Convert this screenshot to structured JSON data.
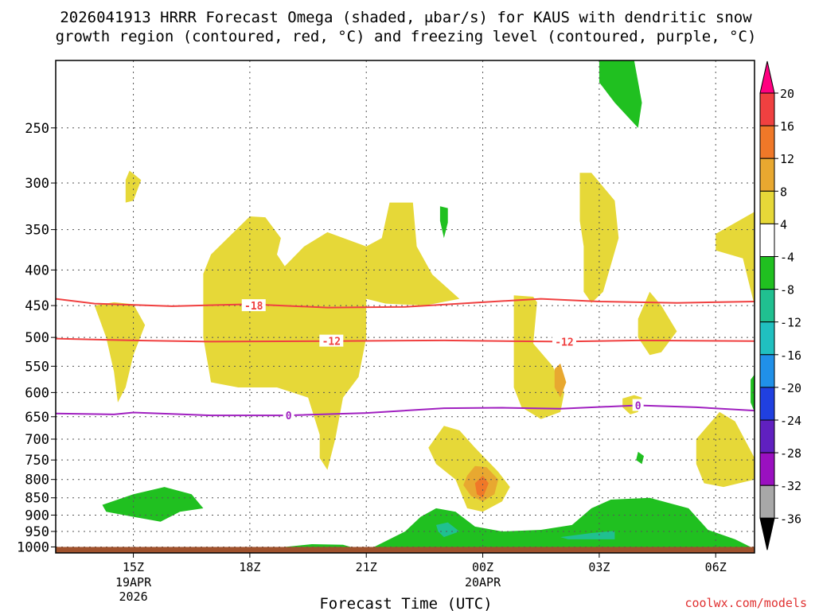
{
  "chart_data": {
    "type": "time-height cross-section (shaded contours)",
    "title_line1": "2026041913 HRRR Forecast Omega (shaded, μbar/s) for KAUS with dendritic snow",
    "title_line2": "growth region (contoured, red, °C) and freezing level (contoured, purple, °C)",
    "xlabel": "Forecast Time (UTC)",
    "credit": "coolwx.com/models",
    "x_ticks": [
      {
        "hour": 15,
        "label": "15Z",
        "sub1": "19APR",
        "sub2": "2026"
      },
      {
        "hour": 18,
        "label": "18Z",
        "sub1": "",
        "sub2": ""
      },
      {
        "hour": 21,
        "label": "21Z",
        "sub1": "",
        "sub2": ""
      },
      {
        "hour": 24,
        "label": "00Z",
        "sub1": "20APR",
        "sub2": ""
      },
      {
        "hour": 27,
        "label": "03Z",
        "sub1": "",
        "sub2": ""
      },
      {
        "hour": 30,
        "label": "06Z",
        "sub1": "",
        "sub2": ""
      }
    ],
    "x_range_hours": [
      13.0,
      31.0
    ],
    "y_ticks_hpa": [
      250,
      300,
      350,
      400,
      450,
      500,
      550,
      600,
      650,
      700,
      750,
      800,
      850,
      900,
      950,
      1000
    ],
    "y_range_hpa": [
      200,
      1020
    ],
    "ground_level_hpa": 1000,
    "colorbar": {
      "labels": [
        "20",
        "16",
        "12",
        "8",
        "4",
        "-4",
        "-8",
        "-12",
        "-16",
        "-20",
        "-24",
        "-28",
        "-32",
        "-36"
      ],
      "colors": [
        "#ff0080",
        "#f04040",
        "#f07828",
        "#e8a830",
        "#e6d838",
        "#ffffff",
        "#20c020",
        "#20c090",
        "#20c0c0",
        "#2090e8",
        "#2040e0",
        "#6020c0",
        "#9a10c0",
        "#a8a8a8",
        "#000000"
      ]
    },
    "contours": [
      {
        "name": "-18 C",
        "label": "-18",
        "color": "#f04040",
        "points": [
          [
            13.0,
            440
          ],
          [
            14.0,
            447
          ],
          [
            16.0,
            451
          ],
          [
            18.0,
            448
          ],
          [
            20.0,
            453
          ],
          [
            22.0,
            452
          ],
          [
            24.0,
            445
          ],
          [
            25.5,
            440
          ],
          [
            27.0,
            444
          ],
          [
            29.0,
            446
          ],
          [
            31.0,
            444
          ]
        ],
        "label_at": [
          18.1,
          450
        ]
      },
      {
        "name": "-12 C",
        "label": "-12",
        "color": "#f04040",
        "points": [
          [
            13.0,
            502
          ],
          [
            15.0,
            505
          ],
          [
            17.0,
            507
          ],
          [
            20.0,
            506
          ],
          [
            23.0,
            505
          ],
          [
            26.0,
            507
          ],
          [
            28.0,
            505
          ],
          [
            31.0,
            506
          ]
        ],
        "label_at": [
          20.1,
          506
        ],
        "label2_at": [
          26.1,
          507
        ]
      },
      {
        "name": "0 C freezing level",
        "label": "0",
        "color": "#a020c0",
        "points": [
          [
            13.0,
            643
          ],
          [
            14.5,
            645
          ],
          [
            15.0,
            641
          ],
          [
            17.0,
            647
          ],
          [
            19.0,
            647
          ],
          [
            21.0,
            642
          ],
          [
            23.0,
            632
          ],
          [
            24.5,
            631
          ],
          [
            26.0,
            633
          ],
          [
            28.0,
            626
          ],
          [
            29.5,
            630
          ],
          [
            31.0,
            637
          ]
        ],
        "label_at": [
          19.0,
          647
        ],
        "label2_at": [
          28.0,
          626
        ]
      }
    ],
    "regions": [
      {
        "name": "green",
        "color": "#20c020",
        "points": [
          [
            27.0,
            200
          ],
          [
            27.9,
            200
          ],
          [
            28.1,
            230
          ],
          [
            28.0,
            250
          ],
          [
            27.4,
            230
          ],
          [
            27.0,
            215
          ]
        ]
      },
      {
        "name": "yellow",
        "color": "#e6d838",
        "points": [
          [
            14.9,
            288
          ],
          [
            15.2,
            297
          ],
          [
            15.0,
            318
          ],
          [
            14.8,
            320
          ],
          [
            14.8,
            297
          ]
        ]
      },
      {
        "name": "green",
        "color": "#20c020",
        "points": [
          [
            22.9,
            324
          ],
          [
            23.1,
            326
          ],
          [
            23.1,
            342
          ],
          [
            23.0,
            360
          ],
          [
            22.9,
            340
          ]
        ]
      },
      {
        "name": "yellow",
        "color": "#e6d838",
        "points": [
          [
            26.5,
            290
          ],
          [
            26.8,
            290
          ],
          [
            27.4,
            318
          ],
          [
            27.5,
            360
          ],
          [
            27.1,
            430
          ],
          [
            26.8,
            446
          ],
          [
            26.6,
            430
          ],
          [
            26.6,
            370
          ],
          [
            26.5,
            340
          ]
        ]
      },
      {
        "name": "yellow",
        "color": "#e6d838",
        "points": [
          [
            30.0,
            355
          ],
          [
            31.0,
            330
          ],
          [
            31.0,
            450
          ],
          [
            30.7,
            385
          ],
          [
            30.0,
            375
          ]
        ]
      },
      {
        "name": "yellow",
        "color": "#e6d838",
        "points": [
          [
            18.0,
            335
          ],
          [
            18.4,
            336
          ],
          [
            18.8,
            360
          ],
          [
            18.7,
            380
          ],
          [
            18.9,
            395
          ],
          [
            19.4,
            370
          ],
          [
            20.0,
            353
          ],
          [
            21.0,
            370
          ],
          [
            21.4,
            360
          ],
          [
            21.6,
            320
          ],
          [
            22.2,
            320
          ],
          [
            22.3,
            370
          ],
          [
            22.7,
            406
          ],
          [
            23.4,
            440
          ],
          [
            22.5,
            450
          ],
          [
            21.5,
            447
          ],
          [
            21.0,
            440
          ],
          [
            21.0,
            500
          ],
          [
            20.8,
            570
          ],
          [
            20.4,
            610
          ],
          [
            20.2,
            700
          ],
          [
            20.0,
            775
          ],
          [
            19.8,
            745
          ],
          [
            19.8,
            690
          ],
          [
            19.5,
            610
          ],
          [
            18.7,
            590
          ],
          [
            17.7,
            590
          ],
          [
            17.0,
            580
          ],
          [
            16.8,
            500
          ],
          [
            16.8,
            405
          ],
          [
            17.0,
            380
          ]
        ]
      },
      {
        "name": "yellow",
        "color": "#e6d838",
        "points": [
          [
            14.5,
            445
          ],
          [
            15.0,
            448
          ],
          [
            15.3,
            480
          ],
          [
            15.0,
            530
          ],
          [
            14.8,
            590
          ],
          [
            14.6,
            620
          ],
          [
            14.5,
            560
          ],
          [
            14.3,
            500
          ],
          [
            14.0,
            450
          ]
        ]
      },
      {
        "name": "yellow",
        "color": "#e6d838",
        "points": [
          [
            24.8,
            435
          ],
          [
            25.3,
            437
          ],
          [
            25.4,
            445
          ],
          [
            25.3,
            510
          ],
          [
            25.8,
            550
          ],
          [
            26.1,
            600
          ],
          [
            26.0,
            640
          ],
          [
            25.5,
            655
          ],
          [
            25.0,
            630
          ],
          [
            24.8,
            590
          ],
          [
            24.8,
            500
          ],
          [
            24.8,
            470
          ]
        ]
      },
      {
        "name": "yellow",
        "color": "#e6d838",
        "points": [
          [
            28.0,
            470
          ],
          [
            28.3,
            430
          ],
          [
            28.6,
            450
          ],
          [
            29.0,
            490
          ],
          [
            28.6,
            525
          ],
          [
            28.3,
            530
          ],
          [
            28.0,
            500
          ]
        ]
      },
      {
        "name": "yellow",
        "color": "#e6d838",
        "points": [
          [
            27.6,
            612
          ],
          [
            27.9,
            605
          ],
          [
            28.1,
            610
          ],
          [
            28.0,
            640
          ],
          [
            27.8,
            645
          ],
          [
            27.6,
            630
          ]
        ]
      },
      {
        "name": "yellow",
        "color": "#e6d838",
        "points": [
          [
            29.5,
            700
          ],
          [
            30.1,
            640
          ],
          [
            30.5,
            660
          ],
          [
            31.0,
            745
          ],
          [
            31.0,
            800
          ],
          [
            30.2,
            820
          ],
          [
            29.7,
            810
          ],
          [
            29.5,
            760
          ]
        ]
      },
      {
        "name": "yellow",
        "color": "#e6d838",
        "points": [
          [
            22.6,
            720
          ],
          [
            23.0,
            670
          ],
          [
            23.4,
            680
          ],
          [
            23.8,
            720
          ],
          [
            24.4,
            780
          ],
          [
            24.7,
            820
          ],
          [
            24.5,
            860
          ],
          [
            24.0,
            890
          ],
          [
            23.6,
            880
          ],
          [
            23.3,
            800
          ],
          [
            22.8,
            760
          ]
        ]
      },
      {
        "name": "orange",
        "color": "#e8a830",
        "points": [
          [
            23.6,
            790
          ],
          [
            23.8,
            765
          ],
          [
            24.1,
            768
          ],
          [
            24.4,
            800
          ],
          [
            24.3,
            840
          ],
          [
            24.0,
            860
          ],
          [
            23.7,
            845
          ],
          [
            23.5,
            815
          ]
        ]
      },
      {
        "name": "dark orange",
        "color": "#f07828",
        "points": [
          [
            23.8,
            810
          ],
          [
            24.0,
            790
          ],
          [
            24.15,
            810
          ],
          [
            24.0,
            850
          ],
          [
            23.85,
            840
          ]
        ]
      },
      {
        "name": "orange",
        "color": "#e8a830",
        "points": [
          [
            25.85,
            555
          ],
          [
            26.0,
            545
          ],
          [
            26.15,
            580
          ],
          [
            26.0,
            610
          ],
          [
            25.85,
            590
          ]
        ]
      },
      {
        "name": "green",
        "color": "#20c020",
        "points": [
          [
            28.0,
            730
          ],
          [
            28.15,
            740
          ],
          [
            28.1,
            760
          ],
          [
            27.95,
            750
          ]
        ]
      },
      {
        "name": "green",
        "color": "#20c020",
        "points": [
          [
            30.9,
            575
          ],
          [
            31.0,
            565
          ],
          [
            31.0,
            640
          ],
          [
            30.9,
            620
          ]
        ]
      },
      {
        "name": "green",
        "color": "#20c020",
        "points": [
          [
            14.2,
            870
          ],
          [
            15.0,
            840
          ],
          [
            15.8,
            820
          ],
          [
            16.5,
            840
          ],
          [
            16.8,
            880
          ],
          [
            16.2,
            890
          ],
          [
            15.7,
            920
          ],
          [
            15.0,
            905
          ],
          [
            14.3,
            890
          ]
        ]
      },
      {
        "name": "green",
        "color": "#20c020",
        "points": [
          [
            21.2,
            1000
          ],
          [
            22.0,
            950
          ],
          [
            22.4,
            905
          ],
          [
            22.8,
            880
          ],
          [
            23.3,
            890
          ],
          [
            23.8,
            935
          ],
          [
            24.5,
            950
          ],
          [
            25.5,
            945
          ],
          [
            26.3,
            930
          ],
          [
            26.8,
            880
          ],
          [
            27.3,
            855
          ],
          [
            28.3,
            850
          ],
          [
            29.3,
            880
          ],
          [
            29.8,
            945
          ],
          [
            30.5,
            975
          ],
          [
            30.9,
            1000
          ]
        ]
      },
      {
        "name": "teal",
        "color": "#20c090",
        "points": [
          [
            22.8,
            930
          ],
          [
            23.1,
            922
          ],
          [
            23.4,
            950
          ],
          [
            23.0,
            968
          ],
          [
            22.85,
            950
          ]
        ]
      },
      {
        "name": "teal",
        "color": "#20c090",
        "points": [
          [
            26.0,
            968
          ],
          [
            26.8,
            955
          ],
          [
            27.4,
            948
          ],
          [
            27.4,
            975
          ],
          [
            26.2,
            975
          ]
        ]
      },
      {
        "name": "green",
        "color": "#20c020",
        "points": [
          [
            18.9,
            1000
          ],
          [
            19.6,
            991
          ],
          [
            20.4,
            993
          ],
          [
            20.6,
            1000
          ]
        ]
      }
    ]
  }
}
